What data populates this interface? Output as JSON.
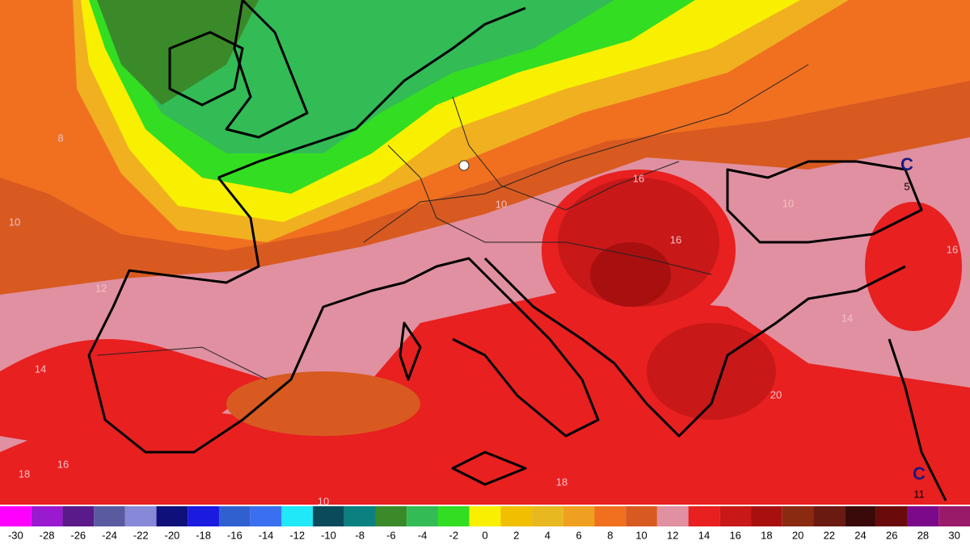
{
  "map": {
    "contour_labels": [
      "C",
      "5",
      "C",
      "11",
      "16",
      "10",
      "16",
      "18",
      "16",
      "18",
      "10",
      "14",
      "12",
      "8",
      "10",
      "20",
      "14",
      "16",
      "10"
    ]
  },
  "colorbar": {
    "steps": [
      {
        "value": -30,
        "color": "#ff00ff"
      },
      {
        "value": -28,
        "color": "#9a1ad0"
      },
      {
        "value": -26,
        "color": "#5a1a8a"
      },
      {
        "value": -24,
        "color": "#5a5aa0"
      },
      {
        "value": -22,
        "color": "#8888d8"
      },
      {
        "value": -20,
        "color": "#10107a"
      },
      {
        "value": -18,
        "color": "#1a1ae0"
      },
      {
        "value": -16,
        "color": "#3060d0"
      },
      {
        "value": -14,
        "color": "#3a70f0"
      },
      {
        "value": -12,
        "color": "#20e8f8"
      },
      {
        "value": -10,
        "color": "#0a4a5a"
      },
      {
        "value": -8,
        "color": "#0a8080"
      },
      {
        "value": -6,
        "color": "#3a8a2a"
      },
      {
        "value": -4,
        "color": "#33bb55"
      },
      {
        "value": -2,
        "color": "#33dd22"
      },
      {
        "value": 0,
        "color": "#f8f000"
      },
      {
        "value": 2,
        "color": "#f0c000"
      },
      {
        "value": 4,
        "color": "#e8b820"
      },
      {
        "value": 6,
        "color": "#f0a020"
      },
      {
        "value": 8,
        "color": "#f07020"
      },
      {
        "value": 10,
        "color": "#d85a20"
      },
      {
        "value": 12,
        "color": "#e090a0"
      },
      {
        "value": 14,
        "color": "#e82020"
      },
      {
        "value": 16,
        "color": "#c81818"
      },
      {
        "value": 18,
        "color": "#a81010"
      },
      {
        "value": 20,
        "color": "#8a2a10"
      },
      {
        "value": 22,
        "color": "#6a1a10"
      },
      {
        "value": 24,
        "color": "#3a0a0a"
      },
      {
        "value": 26,
        "color": "#6a0a0a"
      },
      {
        "value": 28,
        "color": "#7a0a8a"
      },
      {
        "value": 30,
        "color": "#9a1a6a"
      }
    ]
  }
}
